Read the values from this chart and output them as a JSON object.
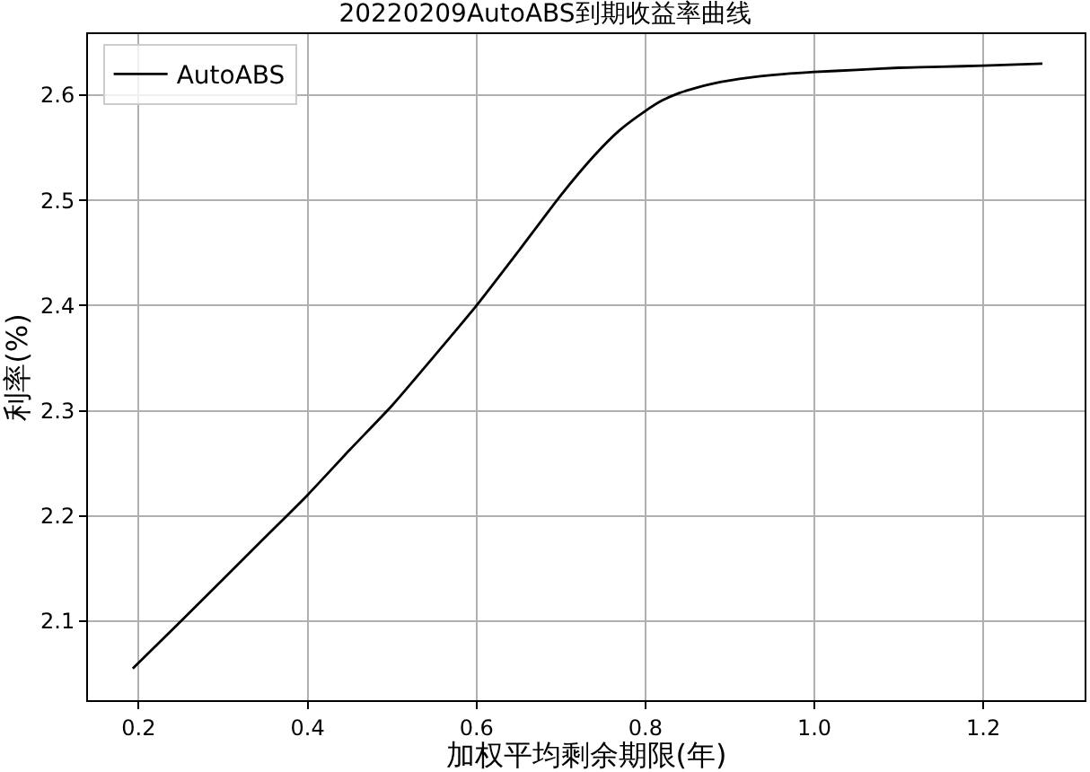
{
  "chart_data": {
    "type": "line",
    "title": "20220209AutoABS到期收益率曲线",
    "xlabel": "加权平均剩余期限(年)",
    "ylabel": "利率(%)",
    "series": [
      {
        "name": "AutoABS",
        "color": "#000000",
        "x": [
          0.193,
          0.25,
          0.3,
          0.35,
          0.4,
          0.45,
          0.5,
          0.55,
          0.6,
          0.65,
          0.7,
          0.74,
          0.77,
          0.8,
          0.82,
          0.84,
          0.86,
          0.88,
          0.9,
          0.95,
          1.0,
          1.05,
          1.1,
          1.15,
          1.2,
          1.27
        ],
        "values": [
          2.055,
          2.1,
          2.14,
          2.18,
          2.22,
          2.263,
          2.305,
          2.352,
          2.4,
          2.452,
          2.505,
          2.543,
          2.567,
          2.585,
          2.595,
          2.602,
          2.607,
          2.611,
          2.614,
          2.619,
          2.622,
          2.624,
          2.626,
          2.627,
          2.628,
          2.63
        ]
      }
    ],
    "xlim": [
      0.14,
      1.32
    ],
    "ylim": [
      2.025,
      2.658
    ],
    "xticks": [
      0.2,
      0.4,
      0.6,
      0.8,
      {
        "value": 1,
        "label": "1.0"
      },
      1.2
    ],
    "yticks": [
      2.1,
      2.2,
      2.3,
      2.4,
      2.5,
      2.6
    ],
    "grid": true,
    "legend": "top left",
    "marker": "none",
    "line_style": "solid"
  }
}
